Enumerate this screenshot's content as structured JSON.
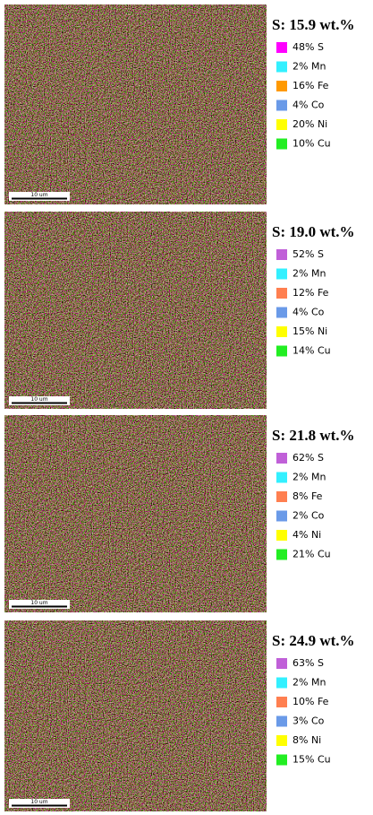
{
  "panels": [
    {
      "title": "S: 15.9 wt.%",
      "scale_bar": "10 um",
      "legend": [
        {
          "label": "48% S",
          "color": "#ff00ff"
        },
        {
          "label": "2% Mn",
          "color": "#33f0ff"
        },
        {
          "label": "16% Fe",
          "color": "#ff9900"
        },
        {
          "label": "4% Co",
          "color": "#6a9ae8"
        },
        {
          "label": "20% Ni",
          "color": "#ffff00"
        },
        {
          "label": "10% Cu",
          "color": "#22ee22"
        }
      ]
    },
    {
      "title": "S: 19.0 wt.%",
      "scale_bar": "10 um",
      "legend": [
        {
          "label": "52% S",
          "color": "#c060d8"
        },
        {
          "label": "2% Mn",
          "color": "#33f0ff"
        },
        {
          "label": "12% Fe",
          "color": "#ff7f50"
        },
        {
          "label": "4% Co",
          "color": "#6a9ae8"
        },
        {
          "label": "15% Ni",
          "color": "#ffff00"
        },
        {
          "label": "14% Cu",
          "color": "#22ee22"
        }
      ]
    },
    {
      "title": "S: 21.8 wt.%",
      "scale_bar": "10 um",
      "legend": [
        {
          "label": "62% S",
          "color": "#c060d8"
        },
        {
          "label": "2% Mn",
          "color": "#33f0ff"
        },
        {
          "label": "8% Fe",
          "color": "#ff7f50"
        },
        {
          "label": "2% Co",
          "color": "#6a9ae8"
        },
        {
          "label": "4% Ni",
          "color": "#ffff00"
        },
        {
          "label": "21% Cu",
          "color": "#22ee22"
        }
      ]
    },
    {
      "title": "S: 24.9 wt.%",
      "scale_bar": "10 um",
      "legend": [
        {
          "label": "63% S",
          "color": "#c060d8"
        },
        {
          "label": "2% Mn",
          "color": "#33f0ff"
        },
        {
          "label": "10% Fe",
          "color": "#ff7f50"
        },
        {
          "label": "3% Co",
          "color": "#6a9ae8"
        },
        {
          "label": "8% Ni",
          "color": "#ffff00"
        },
        {
          "label": "15% Cu",
          "color": "#22ee22"
        }
      ]
    }
  ]
}
